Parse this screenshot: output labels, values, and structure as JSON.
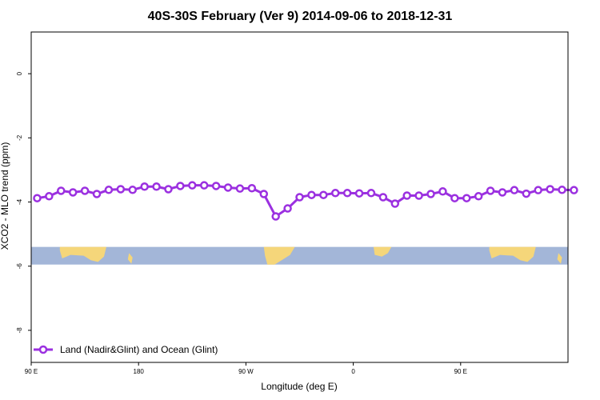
{
  "chart_data": {
    "type": "line",
    "title": "40S-30S February (Ver 9)   2014-09-06 to 2018-12-31",
    "xlabel": "Longitude (deg E)",
    "ylabel": "XCO2 - MLO trend (ppm)",
    "xlim": [
      90,
      450
    ],
    "ylim": [
      -9.0,
      1.3
    ],
    "x_ticks": [
      {
        "value": 90,
        "label": "90 E"
      },
      {
        "value": 180,
        "label": "180"
      },
      {
        "value": 270,
        "label": "90 W"
      },
      {
        "value": 360,
        "label": "0"
      },
      {
        "value": 450,
        "label": "90 E"
      }
    ],
    "x_ticks_top": [
      450,
      "180"
    ],
    "y_ticks": [
      {
        "value": 0,
        "label": "0"
      },
      {
        "value": -2,
        "label": "-2"
      },
      {
        "value": -4,
        "label": "-4"
      },
      {
        "value": -6,
        "label": "-6"
      },
      {
        "value": -8,
        "label": "-8"
      }
    ],
    "series": [
      {
        "name": "Land (Nadir&Glint) and Ocean (Glint)",
        "color": "#9b30e0",
        "x": [
          95,
          105,
          115,
          125,
          135,
          145,
          155,
          165,
          175,
          185,
          195,
          205,
          215,
          225,
          235,
          245,
          255,
          265,
          275,
          285,
          295,
          305,
          315,
          325,
          335,
          345,
          355,
          365,
          375,
          385,
          395,
          405,
          415,
          425,
          435,
          445,
          455,
          465,
          475,
          485,
          495,
          505,
          515,
          525,
          535,
          545
        ],
        "y": [
          -3.88,
          -3.82,
          -3.65,
          -3.7,
          -3.65,
          -3.75,
          -3.62,
          -3.6,
          -3.62,
          -3.52,
          -3.52,
          -3.6,
          -3.5,
          -3.48,
          -3.48,
          -3.5,
          -3.55,
          -3.58,
          -3.57,
          -3.75,
          -4.45,
          -4.2,
          -3.85,
          -3.78,
          -3.78,
          -3.72,
          -3.72,
          -3.73,
          -3.72,
          -3.85,
          -4.05,
          -3.8,
          -3.8,
          -3.75,
          -3.67,
          -3.88,
          -3.88,
          -3.82,
          -3.65,
          -3.7,
          -3.63,
          -3.74,
          -3.63,
          -3.6,
          -3.62,
          -3.63
        ]
      }
    ],
    "legend": {
      "position": "bottom-left",
      "label": "Land (Nadir&Glint) and Ocean (Glint)"
    },
    "map_strip": {
      "y_range": [
        -5.4,
        -5.95
      ],
      "ocean_color": "#a3b6d8",
      "land_color": "#f5d67a"
    },
    "grid": false
  }
}
